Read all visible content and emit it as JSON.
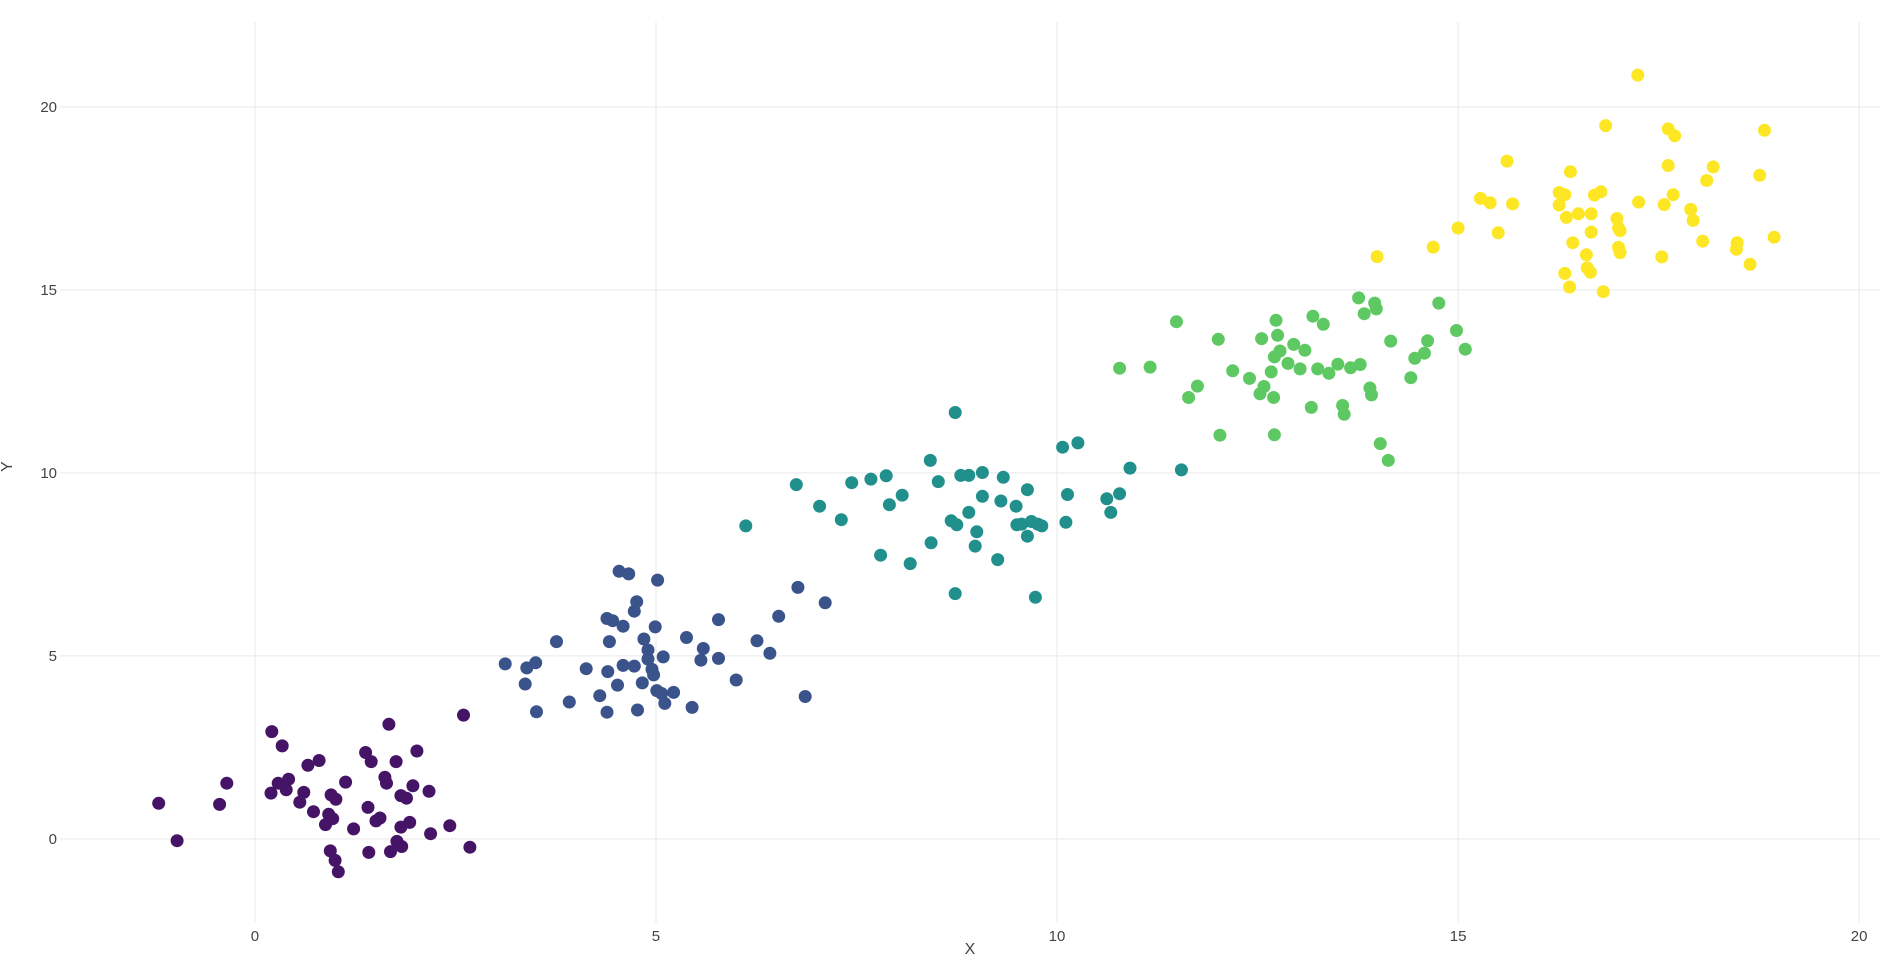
{
  "style": {
    "background": "#ffffff",
    "grid_color": "#e9e9e9",
    "tick_color": "#444444"
  },
  "chart_data": {
    "type": "scatter",
    "title": "",
    "xlabel": "X",
    "ylabel": "Y",
    "xlim": [
      -2.43,
      20.26
    ],
    "ylim": [
      -2.3,
      22.32
    ],
    "x_ticks": [
      0,
      5,
      10,
      15,
      20
    ],
    "y_ticks": [
      0,
      5,
      10,
      15,
      20
    ],
    "grid": true,
    "legend_visible": false,
    "marker_radius_px": 6.5,
    "series": [
      {
        "name": "cluster-purple",
        "color": "#451466",
        "points": [
          [
            -1.2,
            0.97
          ],
          [
            -0.97,
            -0.05
          ],
          [
            -0.44,
            0.94
          ],
          [
            -0.35,
            1.52
          ],
          [
            0.21,
            2.93
          ],
          [
            0.34,
            2.54
          ],
          [
            0.66,
            2.01
          ],
          [
            0.8,
            2.14
          ],
          [
            0.29,
            1.52
          ],
          [
            0.42,
            1.63
          ],
          [
            0.39,
            1.34
          ],
          [
            0.2,
            1.25
          ],
          [
            0.61,
            1.27
          ],
          [
            0.56,
            1.0
          ],
          [
            0.73,
            0.74
          ],
          [
            0.95,
            1.2
          ],
          [
            1.01,
            1.08
          ],
          [
            0.92,
            0.67
          ],
          [
            0.97,
            0.55
          ],
          [
            0.88,
            0.39
          ],
          [
            1.13,
            1.55
          ],
          [
            1.23,
            0.27
          ],
          [
            1.41,
            0.86
          ],
          [
            1.45,
            2.11
          ],
          [
            1.38,
            2.36
          ],
          [
            1.51,
            0.49
          ],
          [
            1.56,
            0.57
          ],
          [
            1.67,
            3.13
          ],
          [
            1.62,
            1.68
          ],
          [
            1.64,
            1.52
          ],
          [
            1.76,
            2.11
          ],
          [
            1.82,
            1.18
          ],
          [
            1.89,
            1.11
          ],
          [
            1.82,
            0.32
          ],
          [
            1.93,
            0.45
          ],
          [
            1.77,
            -0.07
          ],
          [
            1.83,
            -0.21
          ],
          [
            2.02,
            2.4
          ],
          [
            1.97,
            1.45
          ],
          [
            2.17,
            1.3
          ],
          [
            2.19,
            0.14
          ],
          [
            2.43,
            0.36
          ],
          [
            2.6,
            3.38
          ],
          [
            2.68,
            -0.23
          ],
          [
            0.94,
            -0.33
          ],
          [
            1.0,
            -0.59
          ],
          [
            1.04,
            -0.9
          ],
          [
            1.42,
            -0.37
          ],
          [
            1.69,
            -0.35
          ]
        ]
      },
      {
        "name": "cluster-blue",
        "color": "#3a538b",
        "points": [
          [
            4.54,
            7.31
          ],
          [
            4.66,
            7.24
          ],
          [
            5.02,
            7.07
          ],
          [
            6.77,
            6.87
          ],
          [
            4.76,
            6.48
          ],
          [
            4.73,
            6.22
          ],
          [
            4.39,
            6.02
          ],
          [
            4.46,
            5.96
          ],
          [
            4.59,
            5.81
          ],
          [
            4.99,
            5.79
          ],
          [
            5.78,
            5.99
          ],
          [
            6.53,
            6.08
          ],
          [
            3.76,
            5.39
          ],
          [
            4.42,
            5.39
          ],
          [
            4.85,
            5.46
          ],
          [
            5.38,
            5.5
          ],
          [
            5.59,
            5.2
          ],
          [
            6.26,
            5.41
          ],
          [
            6.42,
            5.07
          ],
          [
            4.9,
            5.16
          ],
          [
            4.9,
            4.91
          ],
          [
            3.12,
            4.78
          ],
          [
            3.5,
            4.81
          ],
          [
            3.39,
            4.67
          ],
          [
            4.59,
            4.74
          ],
          [
            4.73,
            4.72
          ],
          [
            5.09,
            4.97
          ],
          [
            5.56,
            4.88
          ],
          [
            5.78,
            4.93
          ],
          [
            3.37,
            4.23
          ],
          [
            4.13,
            4.65
          ],
          [
            4.4,
            4.57
          ],
          [
            4.95,
            4.63
          ],
          [
            4.97,
            4.48
          ],
          [
            4.52,
            4.2
          ],
          [
            4.83,
            4.26
          ],
          [
            4.3,
            3.91
          ],
          [
            5.01,
            4.05
          ],
          [
            5.07,
            3.97
          ],
          [
            5.22,
            4.0
          ],
          [
            5.11,
            3.7
          ],
          [
            3.92,
            3.74
          ],
          [
            4.39,
            3.46
          ],
          [
            4.77,
            3.52
          ],
          [
            5.45,
            3.59
          ],
          [
            3.51,
            3.47
          ],
          [
            6.0,
            4.34
          ],
          [
            6.86,
            3.89
          ],
          [
            7.11,
            6.45
          ]
        ]
      },
      {
        "name": "cluster-teal",
        "color": "#21908c",
        "points": [
          [
            8.73,
            11.65
          ],
          [
            10.07,
            10.7
          ],
          [
            10.26,
            10.82
          ],
          [
            8.42,
            10.34
          ],
          [
            10.91,
            10.13
          ],
          [
            11.55,
            10.08
          ],
          [
            6.75,
            9.68
          ],
          [
            7.44,
            9.73
          ],
          [
            7.68,
            9.83
          ],
          [
            7.87,
            9.92
          ],
          [
            8.52,
            9.76
          ],
          [
            8.8,
            9.93
          ],
          [
            8.9,
            9.93
          ],
          [
            9.07,
            10.01
          ],
          [
            9.33,
            9.88
          ],
          [
            9.63,
            9.54
          ],
          [
            7.04,
            9.09
          ],
          [
            8.07,
            9.39
          ],
          [
            7.91,
            9.13
          ],
          [
            9.07,
            9.36
          ],
          [
            9.3,
            9.23
          ],
          [
            9.49,
            9.09
          ],
          [
            10.13,
            9.41
          ],
          [
            10.62,
            9.29
          ],
          [
            10.78,
            9.43
          ],
          [
            7.31,
            8.72
          ],
          [
            6.12,
            8.55
          ],
          [
            8.68,
            8.69
          ],
          [
            8.75,
            8.58
          ],
          [
            8.9,
            8.92
          ],
          [
            9.5,
            8.58
          ],
          [
            9.56,
            8.6
          ],
          [
            9.68,
            8.67
          ],
          [
            9.76,
            8.6
          ],
          [
            9.81,
            8.55
          ],
          [
            10.11,
            8.65
          ],
          [
            10.67,
            8.92
          ],
          [
            9.0,
            8.39
          ],
          [
            9.63,
            8.27
          ],
          [
            8.43,
            8.09
          ],
          [
            8.98,
            8.0
          ],
          [
            7.8,
            7.75
          ],
          [
            8.17,
            7.52
          ],
          [
            9.26,
            7.63
          ],
          [
            8.73,
            6.7
          ],
          [
            9.73,
            6.6
          ]
        ]
      },
      {
        "name": "cluster-green",
        "color": "#5ec962",
        "points": [
          [
            10.78,
            12.86
          ],
          [
            11.16,
            12.89
          ],
          [
            11.49,
            14.13
          ],
          [
            11.64,
            12.06
          ],
          [
            11.75,
            12.37
          ],
          [
            12.01,
            13.65
          ],
          [
            12.03,
            11.03
          ],
          [
            12.19,
            12.79
          ],
          [
            12.4,
            12.58
          ],
          [
            12.55,
            13.67
          ],
          [
            12.58,
            12.36
          ],
          [
            12.53,
            12.16
          ],
          [
            12.67,
            12.76
          ],
          [
            12.71,
            13.17
          ],
          [
            12.73,
            14.17
          ],
          [
            12.75,
            13.76
          ],
          [
            12.78,
            13.33
          ],
          [
            12.7,
            12.06
          ],
          [
            12.71,
            11.04
          ],
          [
            12.88,
            12.99
          ],
          [
            12.95,
            13.51
          ],
          [
            13.03,
            12.84
          ],
          [
            13.09,
            13.35
          ],
          [
            13.17,
            11.79
          ],
          [
            13.19,
            14.28
          ],
          [
            13.25,
            12.84
          ],
          [
            13.32,
            14.06
          ],
          [
            13.39,
            12.72
          ],
          [
            13.5,
            12.97
          ],
          [
            13.56,
            11.84
          ],
          [
            13.58,
            11.6
          ],
          [
            13.66,
            12.87
          ],
          [
            13.78,
            12.96
          ],
          [
            13.76,
            14.78
          ],
          [
            13.83,
            14.35
          ],
          [
            13.96,
            14.64
          ],
          [
            13.98,
            14.48
          ],
          [
            13.9,
            12.32
          ],
          [
            13.92,
            12.13
          ],
          [
            14.03,
            10.8
          ],
          [
            14.13,
            10.34
          ],
          [
            14.16,
            13.6
          ],
          [
            14.41,
            12.6
          ],
          [
            14.46,
            13.13
          ],
          [
            14.58,
            13.27
          ],
          [
            14.62,
            13.61
          ],
          [
            14.76,
            14.64
          ],
          [
            14.98,
            13.89
          ],
          [
            15.09,
            13.38
          ]
        ]
      },
      {
        "name": "cluster-yellow",
        "color": "#fde725",
        "points": [
          [
            17.24,
            20.87
          ],
          [
            16.84,
            19.49
          ],
          [
            17.62,
            19.4
          ],
          [
            17.7,
            19.21
          ],
          [
            18.82,
            19.36
          ],
          [
            15.61,
            18.52
          ],
          [
            16.4,
            18.23
          ],
          [
            17.62,
            18.4
          ],
          [
            18.18,
            18.36
          ],
          [
            18.1,
            17.99
          ],
          [
            18.76,
            18.13
          ],
          [
            15.28,
            17.5
          ],
          [
            15.4,
            17.38
          ],
          [
            15.68,
            17.35
          ],
          [
            16.26,
            17.66
          ],
          [
            16.33,
            17.6
          ],
          [
            16.26,
            17.32
          ],
          [
            16.35,
            16.98
          ],
          [
            16.7,
            17.59
          ],
          [
            16.78,
            17.68
          ],
          [
            16.66,
            17.08
          ],
          [
            16.5,
            17.08
          ],
          [
            17.25,
            17.4
          ],
          [
            17.57,
            17.33
          ],
          [
            17.68,
            17.6
          ],
          [
            16.98,
            16.95
          ],
          [
            17.0,
            16.69
          ],
          [
            17.02,
            16.62
          ],
          [
            17.9,
            17.2
          ],
          [
            17.93,
            16.9
          ],
          [
            15.0,
            16.69
          ],
          [
            15.5,
            16.56
          ],
          [
            16.66,
            16.58
          ],
          [
            14.69,
            16.17
          ],
          [
            16.43,
            16.29
          ],
          [
            16.6,
            15.96
          ],
          [
            17.0,
            16.16
          ],
          [
            17.02,
            16.02
          ],
          [
            17.54,
            15.9
          ],
          [
            18.05,
            16.33
          ],
          [
            18.48,
            16.29
          ],
          [
            18.47,
            16.11
          ],
          [
            18.94,
            16.44
          ],
          [
            18.64,
            15.7
          ],
          [
            16.61,
            15.6
          ],
          [
            16.65,
            15.48
          ],
          [
            16.33,
            15.45
          ],
          [
            16.39,
            15.08
          ],
          [
            16.81,
            14.95
          ],
          [
            13.99,
            15.91
          ]
        ]
      }
    ]
  }
}
